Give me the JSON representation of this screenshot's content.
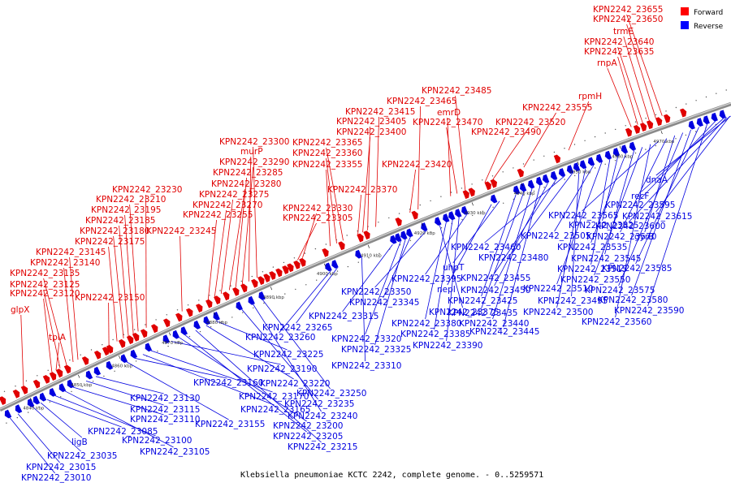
{
  "title": "Klebsiella pneumoniae KCTC 2242, complete genome. - 0..5259571",
  "legend": [
    {
      "name": "Forward",
      "color": "#ff0000"
    },
    {
      "name": "Reverse",
      "color": "#0000ff"
    }
  ],
  "colors": {
    "forward": "#e00000",
    "reverse": "#0000e0",
    "axis": "#8a8a8a"
  },
  "ticks": [
    "4840 kbp",
    "4850 kbp",
    "4860 kbp",
    "4870 kbp",
    "4880 kbp",
    "4890 kbp",
    "4900 kbp",
    "4910 kbp",
    "4920 kbp",
    "4930 kbp",
    "4940 kbp",
    "4950 kbp",
    "4960 kbp",
    "4970 kbp"
  ],
  "forward_genes": [
    "glpX",
    "tpiA",
    "KPN2242_23120",
    "KPN2242_23125",
    "KPN2242_23135",
    "KPN2242_23140",
    "KPN2242_23145",
    "KPN2242_23150",
    "KPN2242_23175",
    "KPN2242_23180",
    "KPN2242_23185",
    "KPN2242_23195",
    "KPN2242_23210",
    "KPN2242_23230",
    "KPN2242_23245",
    "KPN2242_23255",
    "KPN2242_23270",
    "KPN2242_23275",
    "KPN2242_23280",
    "KPN2242_23285",
    "KPN2242_23290",
    "murP",
    "KPN2242_23300",
    "KPN2242_23305",
    "KPN2242_23330",
    "KPN2242_23355",
    "KPN2242_23360",
    "KPN2242_23365",
    "KPN2242_23370",
    "KPN2242_23400",
    "KPN2242_23405",
    "KPN2242_23415",
    "KPN2242_23420",
    "KPN2242_23465",
    "emrD",
    "KPN2242_23470",
    "KPN2242_23485",
    "KPN2242_23490",
    "KPN2242_23520",
    "KPN2242_23555",
    "rpmH",
    "rnpA",
    "KPN2242_23635",
    "KPN2242_23640",
    "trmE",
    "KPN2242_23650",
    "KPN2242_23655"
  ],
  "reverse_genes": [
    "KPN2242_23010",
    "KPN2242_23015",
    "KPN2242_23035",
    "ligB",
    "KPN2242_23085",
    "KPN2242_23100",
    "KPN2242_23105",
    "KPN2242_23110",
    "KPN2242_23115",
    "KPN2242_23130",
    "KPN2242_23155",
    "KPN2242_23160",
    "KPN2242_23165",
    "KPN2242_23170",
    "KPN2242_23190",
    "KPN2242_23200",
    "KPN2242_23205",
    "KPN2242_23215",
    "KPN2242_23220",
    "KPN2242_23225",
    "KPN2242_23235",
    "KPN2242_23240",
    "KPN2242_23250",
    "KPN2242_23260",
    "KPN2242_23265",
    "KPN2242_23310",
    "KPN2242_23315",
    "KPN2242_23320",
    "KPN2242_23325",
    "KPN2242_23345",
    "KPN2242_23350",
    "KPN2242_23375",
    "KPN2242_23380",
    "KPN2242_23385",
    "KPN2242_23390",
    "KPN2242_23395",
    "nepI",
    "uhpT",
    "KPN2242_23425",
    "KPN2242_23435",
    "KPN2242_23440",
    "KPN2242_23445",
    "KPN2242_23450",
    "KPN2242_23455",
    "KPN2242_23460",
    "KPN2242_23480",
    "KPN2242_23495",
    "KPN2242_23500",
    "KPN2242_23505",
    "KPN2242_23510",
    "KPN2242_23515",
    "KPN2242_23525",
    "KPN2242_23535",
    "KPN2242_23545",
    "KPN2242_23550",
    "KPN2242_23560",
    "KPN2242_23565",
    "KPN2242_23570",
    "gyrB",
    "KPN2242_23575",
    "KPN2242_23580",
    "KPN2242_23585",
    "KPN2242_23590",
    "KPN2242_23595",
    "recF",
    "KPN2242_23600",
    "KPN2242_23615",
    "dnaA"
  ]
}
